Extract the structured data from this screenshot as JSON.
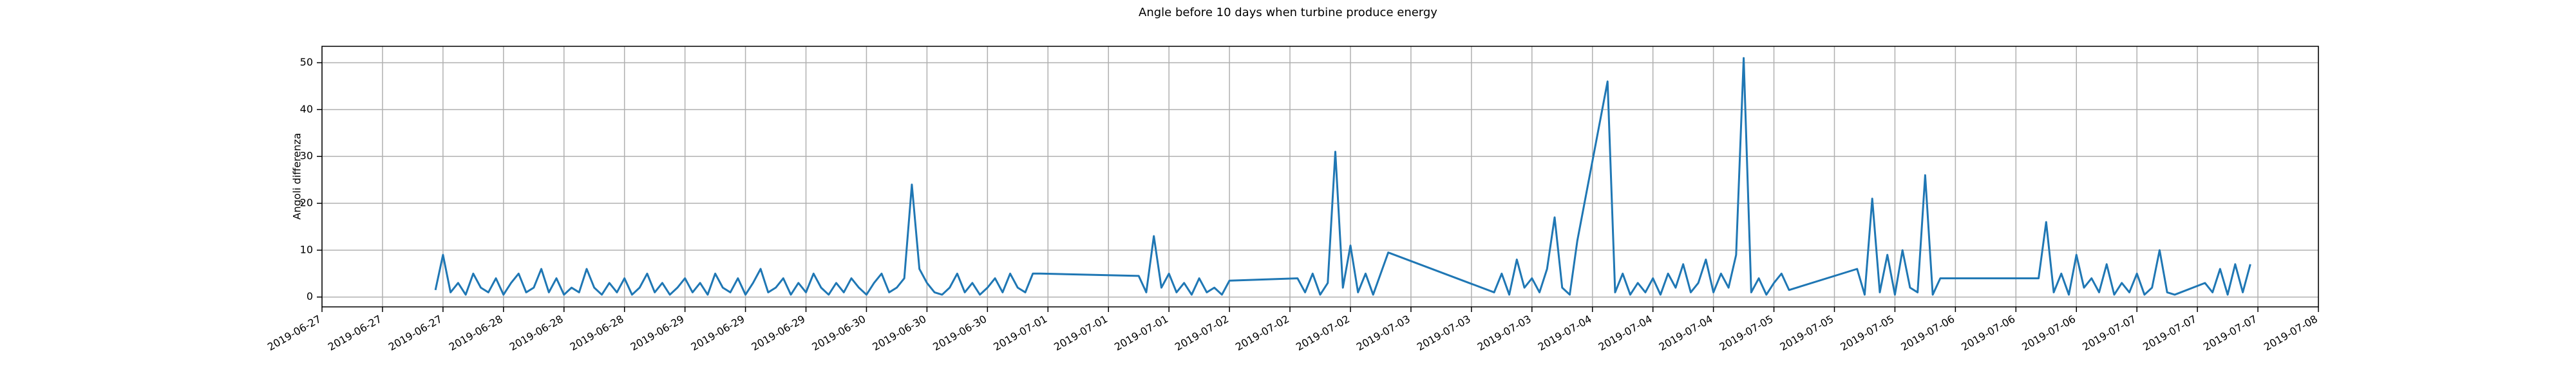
{
  "chart_data": {
    "type": "line",
    "title": "Angle before 10 days when turbine produce energy",
    "ylabel": "Angoli differenza",
    "color": "#1f77b4",
    "grid": true,
    "xlim": [
      "2019-06-27 00:00",
      "2019-07-08 00:00"
    ],
    "ylim": [
      -2.1,
      53.5
    ],
    "yticks": [
      0,
      10,
      20,
      30,
      40,
      50
    ],
    "xticks": [
      {
        "value": "2019-06-27 00:00",
        "label": "2019-06-27"
      },
      {
        "value": "2019-06-27 08:00",
        "label": "2019-06-27"
      },
      {
        "value": "2019-06-27 16:00",
        "label": "2019-06-27"
      },
      {
        "value": "2019-06-28 00:00",
        "label": "2019-06-28"
      },
      {
        "value": "2019-06-28 08:00",
        "label": "2019-06-28"
      },
      {
        "value": "2019-06-28 16:00",
        "label": "2019-06-28"
      },
      {
        "value": "2019-06-29 00:00",
        "label": "2019-06-29"
      },
      {
        "value": "2019-06-29 08:00",
        "label": "2019-06-29"
      },
      {
        "value": "2019-06-29 16:00",
        "label": "2019-06-29"
      },
      {
        "value": "2019-06-30 00:00",
        "label": "2019-06-30"
      },
      {
        "value": "2019-06-30 08:00",
        "label": "2019-06-30"
      },
      {
        "value": "2019-06-30 16:00",
        "label": "2019-06-30"
      },
      {
        "value": "2019-07-01 00:00",
        "label": "2019-07-01"
      },
      {
        "value": "2019-07-01 08:00",
        "label": "2019-07-01"
      },
      {
        "value": "2019-07-01 16:00",
        "label": "2019-07-01"
      },
      {
        "value": "2019-07-02 00:00",
        "label": "2019-07-02"
      },
      {
        "value": "2019-07-02 08:00",
        "label": "2019-07-02"
      },
      {
        "value": "2019-07-02 16:00",
        "label": "2019-07-02"
      },
      {
        "value": "2019-07-03 00:00",
        "label": "2019-07-03"
      },
      {
        "value": "2019-07-03 08:00",
        "label": "2019-07-03"
      },
      {
        "value": "2019-07-03 16:00",
        "label": "2019-07-03"
      },
      {
        "value": "2019-07-04 00:00",
        "label": "2019-07-04"
      },
      {
        "value": "2019-07-04 08:00",
        "label": "2019-07-04"
      },
      {
        "value": "2019-07-04 16:00",
        "label": "2019-07-04"
      },
      {
        "value": "2019-07-05 00:00",
        "label": "2019-07-05"
      },
      {
        "value": "2019-07-05 08:00",
        "label": "2019-07-05"
      },
      {
        "value": "2019-07-05 16:00",
        "label": "2019-07-05"
      },
      {
        "value": "2019-07-06 00:00",
        "label": "2019-07-06"
      },
      {
        "value": "2019-07-06 08:00",
        "label": "2019-07-06"
      },
      {
        "value": "2019-07-06 16:00",
        "label": "2019-07-06"
      },
      {
        "value": "2019-07-07 00:00",
        "label": "2019-07-07"
      },
      {
        "value": "2019-07-07 08:00",
        "label": "2019-07-07"
      },
      {
        "value": "2019-07-07 16:00",
        "label": "2019-07-07"
      },
      {
        "value": "2019-07-08 00:00",
        "label": "2019-07-08"
      }
    ],
    "x": [
      "2019-06-27 15:00",
      "2019-06-27 16:00",
      "2019-06-27 17:00",
      "2019-06-27 18:00",
      "2019-06-27 19:00",
      "2019-06-27 20:00",
      "2019-06-27 21:00",
      "2019-06-27 22:00",
      "2019-06-27 23:00",
      "2019-06-28 00:00",
      "2019-06-28 01:00",
      "2019-06-28 02:00",
      "2019-06-28 03:00",
      "2019-06-28 04:00",
      "2019-06-28 05:00",
      "2019-06-28 06:00",
      "2019-06-28 07:00",
      "2019-06-28 08:00",
      "2019-06-28 09:00",
      "2019-06-28 10:00",
      "2019-06-28 11:00",
      "2019-06-28 12:00",
      "2019-06-28 13:00",
      "2019-06-28 14:00",
      "2019-06-28 15:00",
      "2019-06-28 16:00",
      "2019-06-28 17:00",
      "2019-06-28 18:00",
      "2019-06-28 19:00",
      "2019-06-28 20:00",
      "2019-06-28 21:00",
      "2019-06-28 22:00",
      "2019-06-28 23:00",
      "2019-06-29 00:00",
      "2019-06-29 01:00",
      "2019-06-29 02:00",
      "2019-06-29 03:00",
      "2019-06-29 04:00",
      "2019-06-29 05:00",
      "2019-06-29 06:00",
      "2019-06-29 07:00",
      "2019-06-29 08:00",
      "2019-06-29 09:00",
      "2019-06-29 10:00",
      "2019-06-29 11:00",
      "2019-06-29 12:00",
      "2019-06-29 13:00",
      "2019-06-29 14:00",
      "2019-06-29 15:00",
      "2019-06-29 16:00",
      "2019-06-29 17:00",
      "2019-06-29 18:00",
      "2019-06-29 19:00",
      "2019-06-29 20:00",
      "2019-06-29 21:00",
      "2019-06-29 22:00",
      "2019-06-29 23:00",
      "2019-06-30 00:00",
      "2019-06-30 01:00",
      "2019-06-30 02:00",
      "2019-06-30 03:00",
      "2019-06-30 04:00",
      "2019-06-30 05:00",
      "2019-06-30 06:00",
      "2019-06-30 07:00",
      "2019-06-30 08:00",
      "2019-06-30 09:00",
      "2019-06-30 10:00",
      "2019-06-30 11:00",
      "2019-06-30 12:00",
      "2019-06-30 13:00",
      "2019-06-30 14:00",
      "2019-06-30 15:00",
      "2019-06-30 16:00",
      "2019-06-30 17:00",
      "2019-06-30 18:00",
      "2019-06-30 19:00",
      "2019-06-30 20:00",
      "2019-06-30 21:00",
      "2019-06-30 22:00",
      "2019-06-30 23:00",
      "2019-07-01 12:00",
      "2019-07-01 13:00",
      "2019-07-01 14:00",
      "2019-07-01 15:00",
      "2019-07-01 16:00",
      "2019-07-01 17:00",
      "2019-07-01 18:00",
      "2019-07-01 19:00",
      "2019-07-01 20:00",
      "2019-07-01 21:00",
      "2019-07-01 22:00",
      "2019-07-01 23:00",
      "2019-07-02 00:00",
      "2019-07-02 09:00",
      "2019-07-02 10:00",
      "2019-07-02 11:00",
      "2019-07-02 12:00",
      "2019-07-02 13:00",
      "2019-07-02 14:00",
      "2019-07-02 15:00",
      "2019-07-02 16:00",
      "2019-07-02 17:00",
      "2019-07-02 18:00",
      "2019-07-02 19:00",
      "2019-07-02 20:00",
      "2019-07-02 21:00",
      "2019-07-03 11:00",
      "2019-07-03 12:00",
      "2019-07-03 13:00",
      "2019-07-03 14:00",
      "2019-07-03 15:00",
      "2019-07-03 16:00",
      "2019-07-03 17:00",
      "2019-07-03 18:00",
      "2019-07-03 19:00",
      "2019-07-03 20:00",
      "2019-07-03 21:00",
      "2019-07-03 22:00",
      "2019-07-04 02:00",
      "2019-07-04 03:00",
      "2019-07-04 04:00",
      "2019-07-04 05:00",
      "2019-07-04 06:00",
      "2019-07-04 07:00",
      "2019-07-04 08:00",
      "2019-07-04 09:00",
      "2019-07-04 10:00",
      "2019-07-04 11:00",
      "2019-07-04 12:00",
      "2019-07-04 13:00",
      "2019-07-04 14:00",
      "2019-07-04 15:00",
      "2019-07-04 16:00",
      "2019-07-04 17:00",
      "2019-07-04 18:00",
      "2019-07-04 19:00",
      "2019-07-04 20:00",
      "2019-07-04 21:00",
      "2019-07-04 22:00",
      "2019-07-04 23:00",
      "2019-07-05 00:00",
      "2019-07-05 01:00",
      "2019-07-05 02:00",
      "2019-07-05 11:00",
      "2019-07-05 12:00",
      "2019-07-05 13:00",
      "2019-07-05 14:00",
      "2019-07-05 15:00",
      "2019-07-05 16:00",
      "2019-07-05 17:00",
      "2019-07-05 18:00",
      "2019-07-05 19:00",
      "2019-07-05 20:00",
      "2019-07-05 21:00",
      "2019-07-05 22:00",
      "2019-07-06 11:00",
      "2019-07-06 12:00",
      "2019-07-06 13:00",
      "2019-07-06 14:00",
      "2019-07-06 15:00",
      "2019-07-06 16:00",
      "2019-07-06 17:00",
      "2019-07-06 18:00",
      "2019-07-06 19:00",
      "2019-07-06 20:00",
      "2019-07-06 21:00",
      "2019-07-06 22:00",
      "2019-07-06 23:00",
      "2019-07-07 00:00",
      "2019-07-07 01:00",
      "2019-07-07 02:00",
      "2019-07-07 03:00",
      "2019-07-07 04:00",
      "2019-07-07 05:00",
      "2019-07-07 09:00",
      "2019-07-07 10:00",
      "2019-07-07 11:00",
      "2019-07-07 12:00",
      "2019-07-07 13:00",
      "2019-07-07 14:00",
      "2019-07-07 15:00"
    ],
    "values": [
      1.5,
      9,
      1,
      3,
      0.5,
      5,
      2,
      1,
      4,
      0.5,
      3,
      5,
      1,
      2,
      6,
      1,
      4,
      0.5,
      2,
      1,
      6,
      2,
      0.5,
      3,
      1,
      4,
      0.5,
      2,
      5,
      1,
      3,
      0.5,
      2,
      4,
      1,
      3,
      0.5,
      5,
      2,
      1,
      4,
      0.5,
      3,
      6,
      1,
      2,
      4,
      0.5,
      3,
      1,
      5,
      2,
      0.5,
      3,
      1,
      4,
      2,
      0.5,
      3,
      5,
      1,
      2,
      4,
      24,
      6,
      3,
      1,
      0.5,
      2,
      5,
      1,
      3,
      0.5,
      2,
      4,
      1,
      5,
      2,
      1,
      5,
      5,
      4.5,
      1,
      13,
      2,
      5,
      1,
      3,
      0.5,
      4,
      1,
      2,
      0.5,
      3.5,
      4,
      1,
      5,
      0.5,
      3,
      31,
      2,
      11,
      1,
      5,
      0.5,
      5,
      9.5,
      1,
      5,
      0.5,
      8,
      2,
      4,
      1,
      6,
      17,
      2,
      0.5,
      12,
      46,
      1,
      5,
      0.5,
      3,
      1,
      4,
      0.5,
      5,
      2,
      7,
      1,
      3,
      8,
      1,
      5,
      2,
      9,
      51,
      1,
      4,
      0.5,
      3,
      5,
      1.5,
      6,
      0.5,
      21,
      1,
      9,
      0.5,
      10,
      2,
      1,
      26,
      0.5,
      4,
      4,
      16,
      1,
      5,
      0.5,
      9,
      2,
      4,
      1,
      7,
      0.5,
      3,
      1,
      5,
      0.5,
      2,
      10,
      1,
      0.5,
      3,
      1,
      6,
      0.5,
      7,
      1,
      7
    ]
  }
}
